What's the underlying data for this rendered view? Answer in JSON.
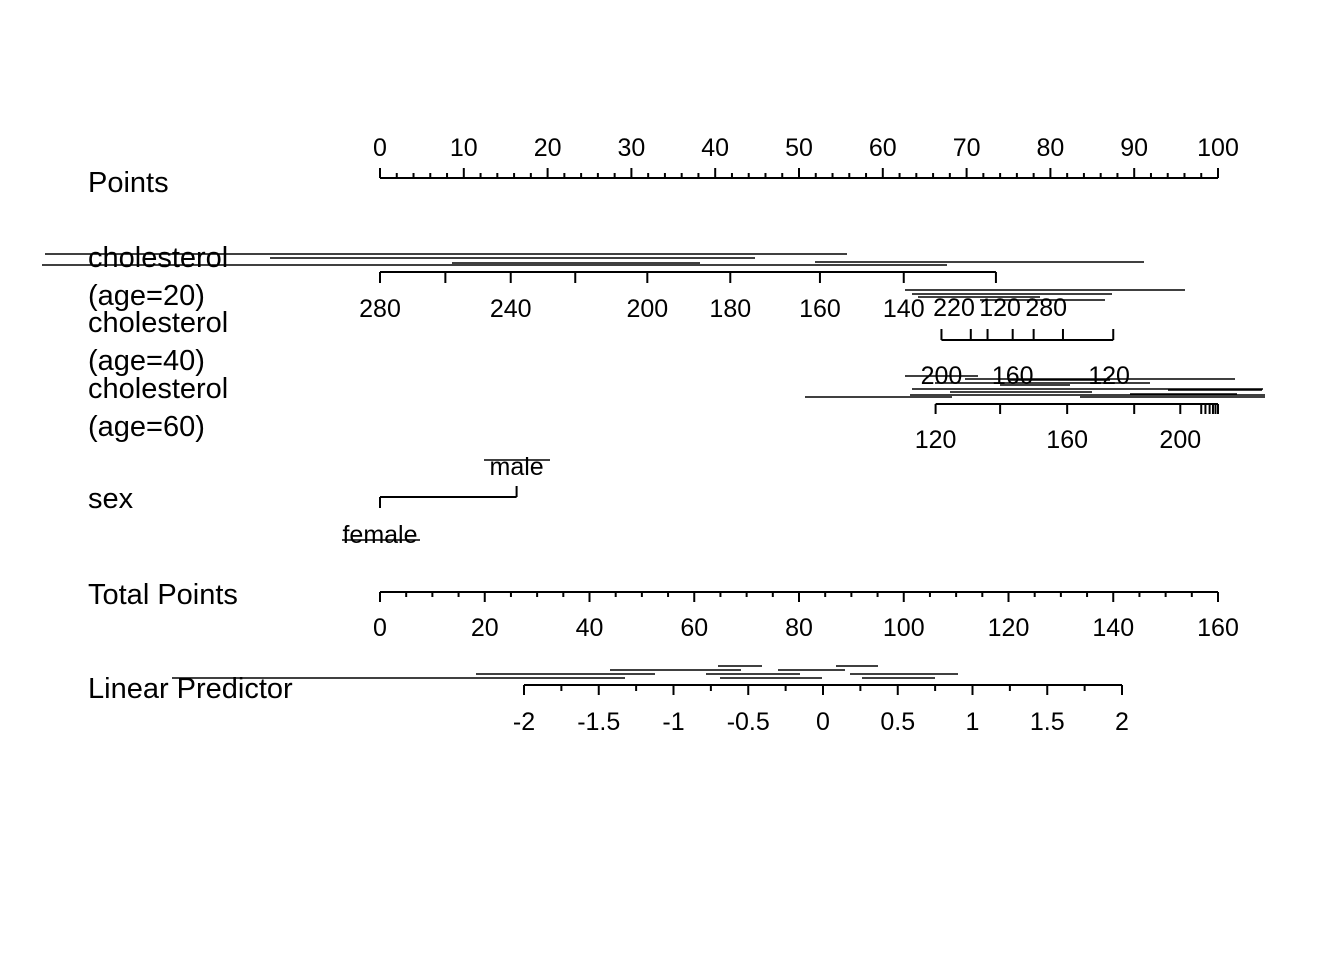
{
  "chart_data": {
    "type": "nomogram",
    "scales": [
      {
        "id": "points",
        "label": "Points",
        "ticks": [
          0,
          10,
          20,
          30,
          40,
          50,
          60,
          70,
          80,
          90,
          100
        ],
        "tick_labels": [
          "0",
          "10",
          "20",
          "30",
          "40",
          "50",
          "60",
          "70",
          "80",
          "90",
          "100"
        ],
        "minor_step": 2,
        "range": [
          0,
          100
        ]
      },
      {
        "id": "chol20",
        "label_lines": [
          "cholesterol",
          "(age=20)"
        ],
        "points_range": [
          0,
          73.5
        ],
        "labeled": [
          {
            "value": "280",
            "points": 0
          },
          {
            "value": "240",
            "points": 15.6
          },
          {
            "value": "200",
            "points": 31.9
          },
          {
            "value": "180",
            "points": 41.8
          },
          {
            "value": "160",
            "points": 52.5
          },
          {
            "value": "140",
            "points": 62.5
          }
        ],
        "unlabeled_tick_points": [
          7.8,
          23.3
        ]
      },
      {
        "id": "chol40",
        "label_lines": [
          "cholesterol",
          "(age=40)"
        ],
        "points_range": [
          67,
          87.5
        ],
        "labeled": [
          {
            "value": "220",
            "points": 68.5
          },
          {
            "value": "120",
            "points": 74
          },
          {
            "value": "280",
            "points": 79.5
          }
        ],
        "unlabeled_tick_points": [
          67,
          70.5,
          72.5,
          75.5,
          78,
          81.5,
          87.5
        ]
      },
      {
        "id": "chol60",
        "label_lines": [
          "cholesterol",
          "(age=60)"
        ],
        "points_range": [
          66.3,
          100
        ],
        "above_labels": [
          {
            "value": "200",
            "points": 67
          },
          {
            "value": "160",
            "points": 75.5
          },
          {
            "value": "120",
            "points": 87
          }
        ],
        "labeled": [
          {
            "value": "120",
            "points": 66.3
          },
          {
            "value": "160",
            "points": 82
          },
          {
            "value": "200",
            "points": 95.5
          }
        ],
        "unlabeled_tick_points": [
          74,
          90,
          98,
          98.5,
          99,
          99.4,
          99.7,
          100
        ]
      },
      {
        "id": "sex",
        "label": "sex",
        "levels": [
          {
            "value": "male",
            "points": 16.3
          },
          {
            "value": "female",
            "points": 0
          }
        ]
      },
      {
        "id": "total",
        "label": "Total Points",
        "ticks": [
          0,
          20,
          40,
          60,
          80,
          100,
          120,
          140,
          160
        ],
        "tick_labels": [
          "0",
          "20",
          "40",
          "60",
          "80",
          "100",
          "120",
          "140",
          "160"
        ],
        "minor_step": 5,
        "range": [
          0,
          160
        ]
      },
      {
        "id": "lp",
        "label": "Linear Predictor",
        "ticks": [
          -2,
          -1.5,
          -1,
          -0.5,
          0,
          0.5,
          1,
          1.5,
          2
        ],
        "tick_labels": [
          "-2",
          "-1.5",
          "-1",
          "-0.5",
          "0",
          "0.5",
          "1",
          "1.5",
          "2"
        ],
        "minor_step": 0.25,
        "range": [
          -2,
          2
        ]
      }
    ]
  }
}
